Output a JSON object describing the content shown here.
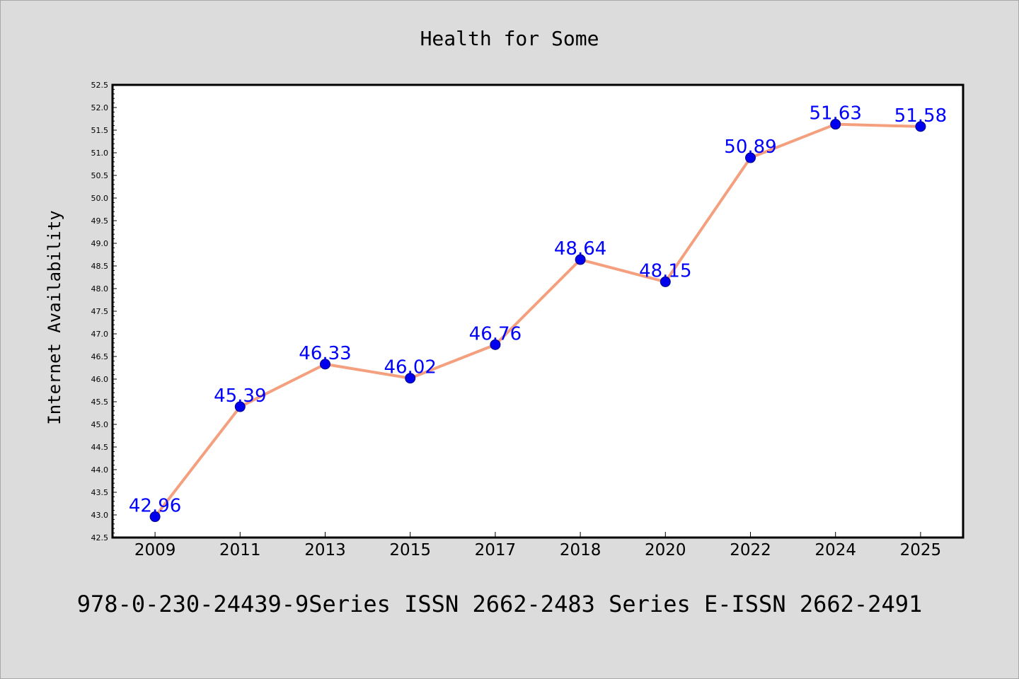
{
  "colors": {
    "background": "#dcdcdc",
    "plot_background": "#ffffff",
    "line": "#f4a07e",
    "marker": "#0000ee",
    "marker_edge": "#000080",
    "data_label": "#0000ff"
  },
  "footer": "978-0-230-24439-9Series ISSN 2662-2483 Series E-ISSN 2662-2491",
  "chart_data": {
    "type": "line",
    "title": "Health for Some",
    "xlabel": "",
    "ylabel": "Internet Availability",
    "categories": [
      "2009",
      "2011",
      "2013",
      "2015",
      "2017",
      "2018",
      "2020",
      "2022",
      "2024",
      "2025"
    ],
    "series": [
      {
        "values": [
          42.96,
          45.39,
          46.33,
          46.02,
          46.76,
          48.64,
          48.15,
          50.89,
          51.63,
          51.58
        ],
        "labels": [
          "42.96",
          "45.39",
          "46.33",
          "46.02",
          "46.76",
          "48.64",
          "48.15",
          "50.89",
          "51.63",
          "51.58"
        ]
      }
    ],
    "ylim": [
      42.5,
      52.5
    ],
    "yticks": [
      "42.5",
      "43.0",
      "43.5",
      "44.0",
      "44.5",
      "45.0",
      "45.5",
      "46.0",
      "46.5",
      "47.0",
      "47.5",
      "48.0",
      "48.5",
      "49.0",
      "49.5",
      "50.0",
      "50.5",
      "51.0",
      "51.5",
      "52.0",
      "52.5"
    ],
    "grid": false,
    "legend": "none"
  }
}
